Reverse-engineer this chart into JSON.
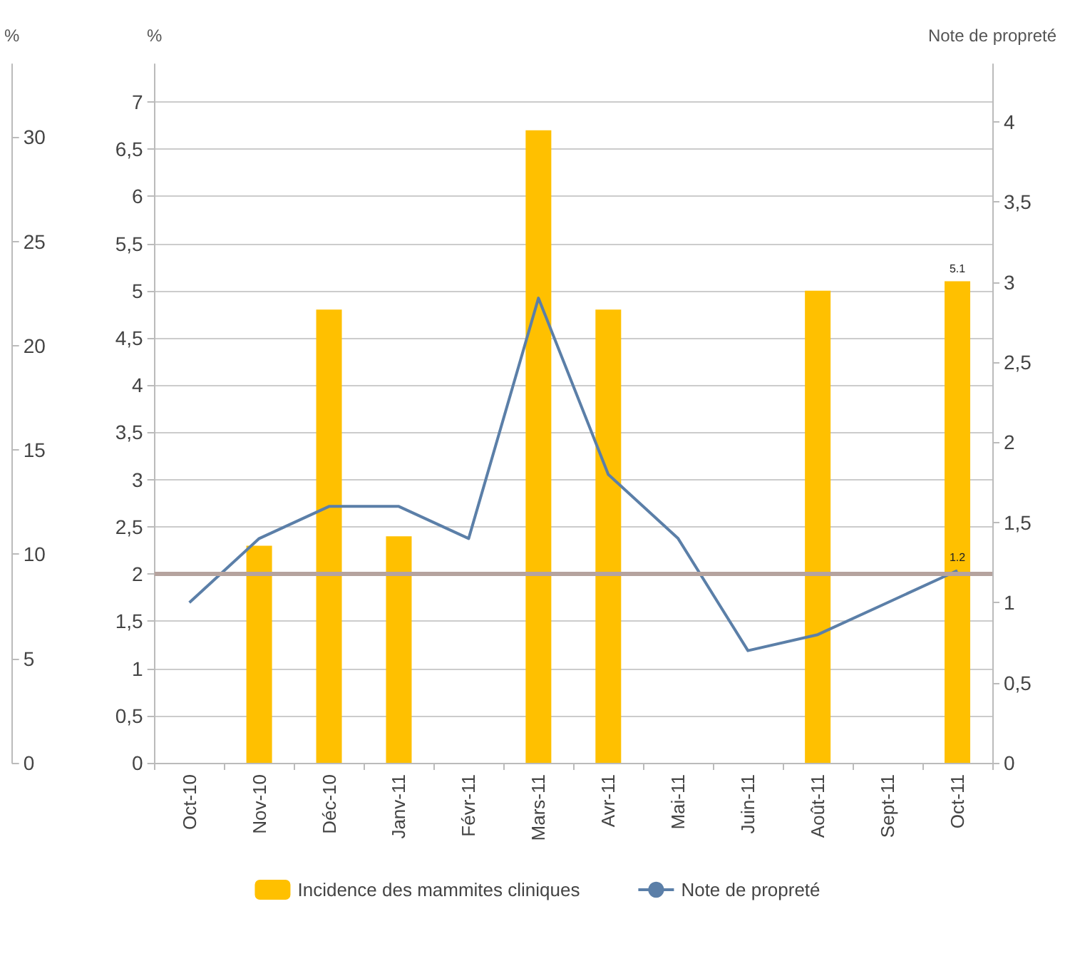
{
  "chart_data": {
    "type": "bar",
    "categories": [
      "Oct-10",
      "Nov-10",
      "Déc-10",
      "Janv-11",
      "Févr-11",
      "Mars-11",
      "Avr-11",
      "Mai-11",
      "Juin-11",
      "Août-11",
      "Sept-11",
      "Oct-11"
    ],
    "series": [
      {
        "name": "Incidence des mammites cliniques",
        "axis": "y",
        "color": "#ffc000",
        "values": [
          null,
          2.3,
          4.8,
          2.4,
          null,
          6.7,
          4.8,
          null,
          null,
          5.0,
          null,
          5.1
        ],
        "value_labels": [
          null,
          null,
          null,
          null,
          null,
          null,
          null,
          null,
          null,
          null,
          null,
          "5.1"
        ]
      },
      {
        "name": "Note de propreté",
        "type": "line",
        "axis": "y2",
        "color": "#5b7fa8",
        "values": [
          1.0,
          1.4,
          1.6,
          1.6,
          1.4,
          2.9,
          1.8,
          1.4,
          0.7,
          0.8,
          1.0,
          1.2
        ],
        "value_labels": [
          null,
          null,
          null,
          null,
          null,
          null,
          null,
          null,
          null,
          null,
          null,
          "1.2"
        ]
      }
    ],
    "ylabel": "%",
    "y2label": "Note de propreté",
    "y3label": "%",
    "ylim": [
      0,
      7.4
    ],
    "yticks": [
      0,
      {
        "value": 0.5,
        "label": "0,5"
      },
      1,
      {
        "value": 1.5,
        "label": "1,5"
      },
      2,
      {
        "value": 2.5,
        "label": "2,5"
      },
      3,
      {
        "value": 3.5,
        "label": "3,5"
      },
      4,
      {
        "value": 4.5,
        "label": "4,5"
      },
      5,
      {
        "value": 5.5,
        "label": "5,5"
      },
      6,
      {
        "value": 6.5,
        "label": "6,5"
      },
      7
    ],
    "y2lim": [
      0,
      4.36
    ],
    "y2ticks": [
      0,
      {
        "value": 0.5,
        "label": "0,5"
      },
      1,
      {
        "value": 1.5,
        "label": "1,5"
      },
      2,
      {
        "value": 2.5,
        "label": "2,5"
      },
      3,
      {
        "value": 3.5,
        "label": "3,5"
      },
      4
    ],
    "y3lim": [
      0,
      33.5
    ],
    "y3ticks": [
      0,
      5,
      10,
      15,
      20,
      25,
      30
    ],
    "ref_lines": [
      {
        "axis": "y",
        "value": 2,
        "color": "#b5a39e"
      }
    ],
    "grid": "y",
    "legend": "bottom",
    "marker": "none"
  }
}
